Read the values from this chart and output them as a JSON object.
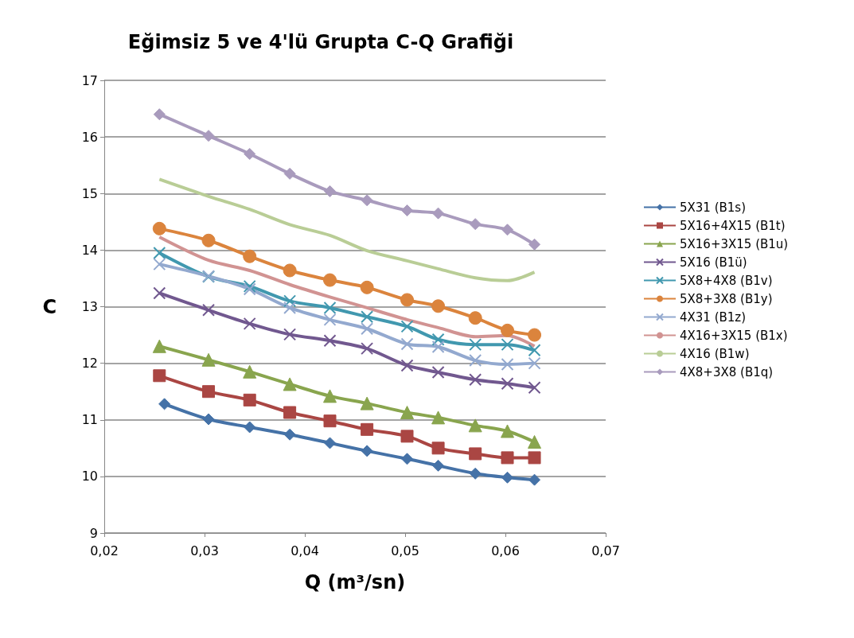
{
  "chart_data": {
    "type": "line",
    "title": "Eğimsiz 5 ve 4'lü Grupta C-Q Grafiği",
    "xlabel": "Q (m³/sn)",
    "ylabel": "C",
    "x": [
      0.0255,
      0.0304,
      0.0345,
      0.0385,
      0.0425,
      0.0462,
      0.0502,
      0.0533,
      0.057,
      0.0602,
      0.0629
    ],
    "xlim": [
      0.02,
      0.07
    ],
    "xticks": [
      {
        "value": 0.02,
        "label": "0,02"
      },
      {
        "value": 0.03,
        "label": "0,03"
      },
      {
        "value": 0.04,
        "label": "0,04"
      },
      {
        "value": 0.05,
        "label": "0,05"
      },
      {
        "value": 0.06,
        "label": "0,06"
      },
      {
        "value": 0.07,
        "label": "0,07"
      }
    ],
    "ylim": [
      9,
      17
    ],
    "yticks": [
      9,
      10,
      11,
      12,
      13,
      14,
      15,
      16,
      17
    ],
    "grid": "y",
    "legend": "right",
    "series": [
      {
        "name": "5X31 (B1s)",
        "color": "#4572a7",
        "marker": "diamond",
        "x": [
          0.026,
          0.0304,
          0.0345,
          0.0385,
          0.0425,
          0.0462,
          0.0502,
          0.0533,
          0.057,
          0.0602,
          0.0629
        ],
        "values": [
          11.28,
          11.01,
          10.87,
          10.74,
          10.59,
          10.45,
          10.31,
          10.19,
          10.05,
          9.98,
          9.94
        ]
      },
      {
        "name": "5X16+4X15 (B1t)",
        "color": "#aa4643",
        "marker": "square",
        "values": [
          11.78,
          11.5,
          11.35,
          11.13,
          10.98,
          10.83,
          10.71,
          10.5,
          10.4,
          10.33,
          10.33
        ]
      },
      {
        "name": "5X16+3X15 (B1u)",
        "color": "#89a54e",
        "marker": "triangle",
        "values": [
          12.3,
          12.06,
          11.85,
          11.63,
          11.42,
          11.29,
          11.13,
          11.04,
          10.9,
          10.8,
          10.61
        ]
      },
      {
        "name": "5X16 (B1ü)",
        "color": "#71588f",
        "marker": "cross",
        "values": [
          13.24,
          12.94,
          12.7,
          12.51,
          12.4,
          12.26,
          11.96,
          11.84,
          11.71,
          11.64,
          11.57
        ]
      },
      {
        "name": "5X8+4X8 (B1v)",
        "color": "#4198af",
        "marker": "cross",
        "values": [
          13.95,
          13.53,
          13.36,
          13.1,
          12.98,
          12.82,
          12.65,
          12.42,
          12.33,
          12.33,
          12.23
        ]
      },
      {
        "name": "5X8+3X8 (B1y)",
        "color": "#db843d",
        "marker": "circle",
        "values": [
          14.38,
          14.17,
          13.89,
          13.64,
          13.47,
          13.34,
          13.12,
          13.01,
          12.8,
          12.58,
          12.5
        ]
      },
      {
        "name": "4X31 (B1z)",
        "color": "#93a9cf",
        "marker": "cross",
        "values": [
          13.75,
          13.54,
          13.31,
          12.98,
          12.77,
          12.61,
          12.34,
          12.29,
          12.05,
          11.98,
          12.0
        ]
      },
      {
        "name": "4X16+3X15 (B1x)",
        "color": "#d19392",
        "marker": "none",
        "values": [
          14.23,
          13.82,
          13.64,
          13.39,
          13.17,
          12.98,
          12.77,
          12.63,
          12.47,
          12.49,
          12.3
        ]
      },
      {
        "name": "4X16 (B1w)",
        "color": "#b9cd96",
        "marker": "none",
        "values": [
          15.25,
          14.95,
          14.72,
          14.45,
          14.26,
          13.99,
          13.81,
          13.67,
          13.51,
          13.46,
          13.61
        ]
      },
      {
        "name": "4X8+3X8 (B1q)",
        "color": "#a99bbd",
        "marker": "diamond",
        "values": [
          16.4,
          16.02,
          15.7,
          15.35,
          15.04,
          14.88,
          14.7,
          14.65,
          14.46,
          14.36,
          14.1
        ]
      }
    ]
  }
}
